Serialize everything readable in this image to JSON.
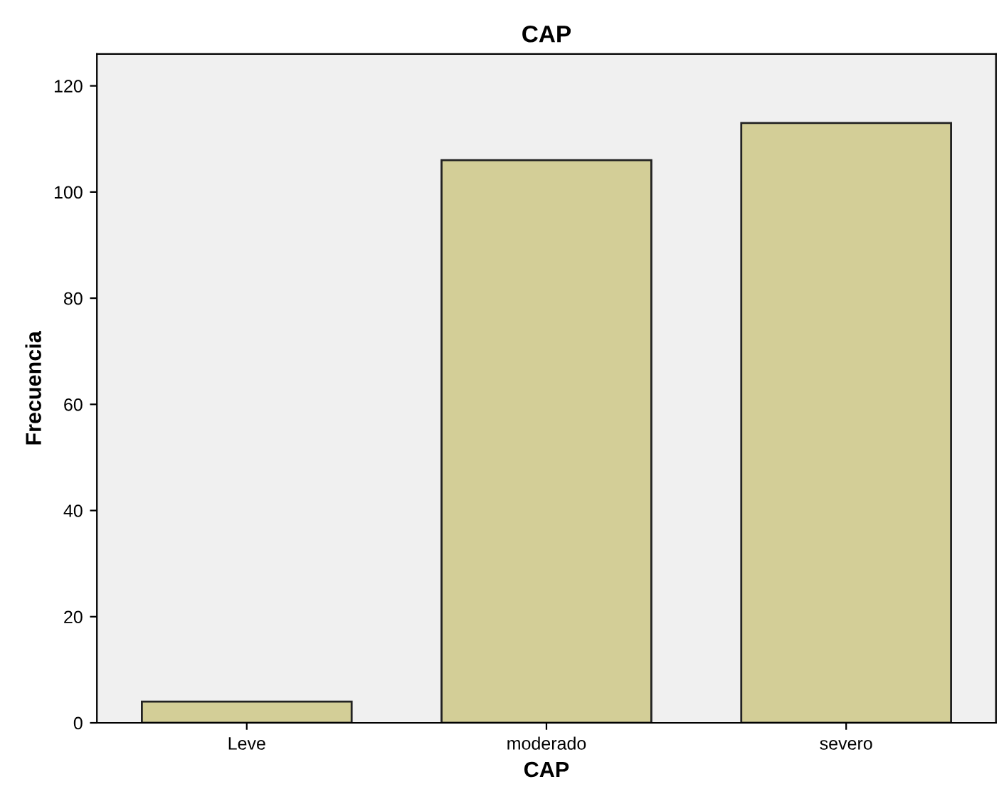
{
  "chart_data": {
    "type": "bar",
    "title": "CAP",
    "xlabel": "CAP",
    "ylabel": "Frecuencia",
    "categories": [
      "Leve",
      "moderado",
      "severo"
    ],
    "values": [
      4,
      106,
      113
    ],
    "color": "#d3ce97",
    "ylim": [
      0,
      126
    ],
    "yticks": [
      0,
      20,
      40,
      60,
      80,
      100,
      120
    ],
    "grid": false,
    "legend": false
  }
}
